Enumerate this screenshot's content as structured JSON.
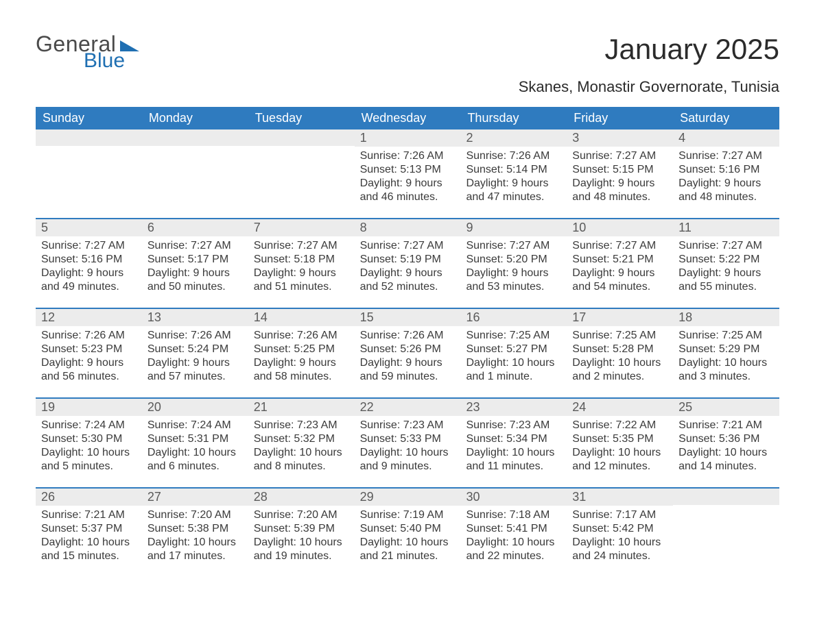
{
  "brand": {
    "line1": "General",
    "line2": "Blue",
    "accent_color": "#1f6fb2"
  },
  "title": "January 2025",
  "location": "Skanes, Monastir Governorate, Tunisia",
  "colors": {
    "header_bg": "#2f7bbf",
    "header_text": "#ffffff",
    "daynum_bg": "#ececec",
    "daynum_text": "#5a5a5a",
    "body_text": "#3a3a3a",
    "week_divider": "#2f7bbf",
    "page_bg": "#ffffff"
  },
  "typography": {
    "title_fontsize": 42,
    "location_fontsize": 22,
    "dow_fontsize": 18,
    "daynum_fontsize": 18,
    "body_fontsize": 16,
    "font_family": "Arial"
  },
  "layout": {
    "columns": 7,
    "rows": 5,
    "first_day_column_index": 3
  },
  "days_of_week": [
    "Sunday",
    "Monday",
    "Tuesday",
    "Wednesday",
    "Thursday",
    "Friday",
    "Saturday"
  ],
  "weeks": [
    [
      null,
      null,
      null,
      {
        "n": "1",
        "sunrise": "Sunrise: 7:26 AM",
        "sunset": "Sunset: 5:13 PM",
        "dl1": "Daylight: 9 hours",
        "dl2": "and 46 minutes."
      },
      {
        "n": "2",
        "sunrise": "Sunrise: 7:26 AM",
        "sunset": "Sunset: 5:14 PM",
        "dl1": "Daylight: 9 hours",
        "dl2": "and 47 minutes."
      },
      {
        "n": "3",
        "sunrise": "Sunrise: 7:27 AM",
        "sunset": "Sunset: 5:15 PM",
        "dl1": "Daylight: 9 hours",
        "dl2": "and 48 minutes."
      },
      {
        "n": "4",
        "sunrise": "Sunrise: 7:27 AM",
        "sunset": "Sunset: 5:16 PM",
        "dl1": "Daylight: 9 hours",
        "dl2": "and 48 minutes."
      }
    ],
    [
      {
        "n": "5",
        "sunrise": "Sunrise: 7:27 AM",
        "sunset": "Sunset: 5:16 PM",
        "dl1": "Daylight: 9 hours",
        "dl2": "and 49 minutes."
      },
      {
        "n": "6",
        "sunrise": "Sunrise: 7:27 AM",
        "sunset": "Sunset: 5:17 PM",
        "dl1": "Daylight: 9 hours",
        "dl2": "and 50 minutes."
      },
      {
        "n": "7",
        "sunrise": "Sunrise: 7:27 AM",
        "sunset": "Sunset: 5:18 PM",
        "dl1": "Daylight: 9 hours",
        "dl2": "and 51 minutes."
      },
      {
        "n": "8",
        "sunrise": "Sunrise: 7:27 AM",
        "sunset": "Sunset: 5:19 PM",
        "dl1": "Daylight: 9 hours",
        "dl2": "and 52 minutes."
      },
      {
        "n": "9",
        "sunrise": "Sunrise: 7:27 AM",
        "sunset": "Sunset: 5:20 PM",
        "dl1": "Daylight: 9 hours",
        "dl2": "and 53 minutes."
      },
      {
        "n": "10",
        "sunrise": "Sunrise: 7:27 AM",
        "sunset": "Sunset: 5:21 PM",
        "dl1": "Daylight: 9 hours",
        "dl2": "and 54 minutes."
      },
      {
        "n": "11",
        "sunrise": "Sunrise: 7:27 AM",
        "sunset": "Sunset: 5:22 PM",
        "dl1": "Daylight: 9 hours",
        "dl2": "and 55 minutes."
      }
    ],
    [
      {
        "n": "12",
        "sunrise": "Sunrise: 7:26 AM",
        "sunset": "Sunset: 5:23 PM",
        "dl1": "Daylight: 9 hours",
        "dl2": "and 56 minutes."
      },
      {
        "n": "13",
        "sunrise": "Sunrise: 7:26 AM",
        "sunset": "Sunset: 5:24 PM",
        "dl1": "Daylight: 9 hours",
        "dl2": "and 57 minutes."
      },
      {
        "n": "14",
        "sunrise": "Sunrise: 7:26 AM",
        "sunset": "Sunset: 5:25 PM",
        "dl1": "Daylight: 9 hours",
        "dl2": "and 58 minutes."
      },
      {
        "n": "15",
        "sunrise": "Sunrise: 7:26 AM",
        "sunset": "Sunset: 5:26 PM",
        "dl1": "Daylight: 9 hours",
        "dl2": "and 59 minutes."
      },
      {
        "n": "16",
        "sunrise": "Sunrise: 7:25 AM",
        "sunset": "Sunset: 5:27 PM",
        "dl1": "Daylight: 10 hours",
        "dl2": "and 1 minute."
      },
      {
        "n": "17",
        "sunrise": "Sunrise: 7:25 AM",
        "sunset": "Sunset: 5:28 PM",
        "dl1": "Daylight: 10 hours",
        "dl2": "and 2 minutes."
      },
      {
        "n": "18",
        "sunrise": "Sunrise: 7:25 AM",
        "sunset": "Sunset: 5:29 PM",
        "dl1": "Daylight: 10 hours",
        "dl2": "and 3 minutes."
      }
    ],
    [
      {
        "n": "19",
        "sunrise": "Sunrise: 7:24 AM",
        "sunset": "Sunset: 5:30 PM",
        "dl1": "Daylight: 10 hours",
        "dl2": "and 5 minutes."
      },
      {
        "n": "20",
        "sunrise": "Sunrise: 7:24 AM",
        "sunset": "Sunset: 5:31 PM",
        "dl1": "Daylight: 10 hours",
        "dl2": "and 6 minutes."
      },
      {
        "n": "21",
        "sunrise": "Sunrise: 7:23 AM",
        "sunset": "Sunset: 5:32 PM",
        "dl1": "Daylight: 10 hours",
        "dl2": "and 8 minutes."
      },
      {
        "n": "22",
        "sunrise": "Sunrise: 7:23 AM",
        "sunset": "Sunset: 5:33 PM",
        "dl1": "Daylight: 10 hours",
        "dl2": "and 9 minutes."
      },
      {
        "n": "23",
        "sunrise": "Sunrise: 7:23 AM",
        "sunset": "Sunset: 5:34 PM",
        "dl1": "Daylight: 10 hours",
        "dl2": "and 11 minutes."
      },
      {
        "n": "24",
        "sunrise": "Sunrise: 7:22 AM",
        "sunset": "Sunset: 5:35 PM",
        "dl1": "Daylight: 10 hours",
        "dl2": "and 12 minutes."
      },
      {
        "n": "25",
        "sunrise": "Sunrise: 7:21 AM",
        "sunset": "Sunset: 5:36 PM",
        "dl1": "Daylight: 10 hours",
        "dl2": "and 14 minutes."
      }
    ],
    [
      {
        "n": "26",
        "sunrise": "Sunrise: 7:21 AM",
        "sunset": "Sunset: 5:37 PM",
        "dl1": "Daylight: 10 hours",
        "dl2": "and 15 minutes."
      },
      {
        "n": "27",
        "sunrise": "Sunrise: 7:20 AM",
        "sunset": "Sunset: 5:38 PM",
        "dl1": "Daylight: 10 hours",
        "dl2": "and 17 minutes."
      },
      {
        "n": "28",
        "sunrise": "Sunrise: 7:20 AM",
        "sunset": "Sunset: 5:39 PM",
        "dl1": "Daylight: 10 hours",
        "dl2": "and 19 minutes."
      },
      {
        "n": "29",
        "sunrise": "Sunrise: 7:19 AM",
        "sunset": "Sunset: 5:40 PM",
        "dl1": "Daylight: 10 hours",
        "dl2": "and 21 minutes."
      },
      {
        "n": "30",
        "sunrise": "Sunrise: 7:18 AM",
        "sunset": "Sunset: 5:41 PM",
        "dl1": "Daylight: 10 hours",
        "dl2": "and 22 minutes."
      },
      {
        "n": "31",
        "sunrise": "Sunrise: 7:17 AM",
        "sunset": "Sunset: 5:42 PM",
        "dl1": "Daylight: 10 hours",
        "dl2": "and 24 minutes."
      },
      null
    ]
  ]
}
